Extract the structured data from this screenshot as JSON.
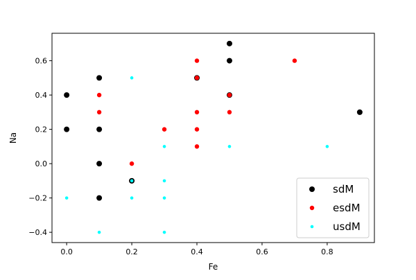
{
  "chart_data": {
    "type": "scatter",
    "title": "",
    "xlabel": "Fe",
    "ylabel": "Na",
    "xlim": [
      -0.045,
      0.945
    ],
    "ylim": [
      -0.46,
      0.76
    ],
    "xticks": [
      0.0,
      0.2,
      0.4,
      0.6,
      0.8
    ],
    "xtick_labels": [
      "0.0",
      "0.2",
      "0.4",
      "0.6",
      "0.8"
    ],
    "yticks": [
      -0.4,
      -0.2,
      0.0,
      0.2,
      0.4,
      0.6
    ],
    "ytick_labels": [
      "−0.4",
      "−0.2",
      "0.0",
      "0.2",
      "0.4",
      "0.6"
    ],
    "grid": false,
    "legend_position": "lower-right",
    "series": [
      {
        "name": "sdM",
        "color": "#000000",
        "marker": "large-dot",
        "points": [
          [
            0.0,
            0.4
          ],
          [
            0.0,
            0.2
          ],
          [
            0.1,
            0.5
          ],
          [
            0.1,
            0.2
          ],
          [
            0.1,
            0.0
          ],
          [
            0.1,
            -0.2
          ],
          [
            0.2,
            -0.1
          ],
          [
            0.4,
            0.5
          ],
          [
            0.5,
            0.7
          ],
          [
            0.5,
            0.6
          ],
          [
            0.5,
            0.4
          ],
          [
            0.9,
            0.3
          ]
        ]
      },
      {
        "name": "esdM",
        "color": "#ff0000",
        "marker": "medium-dot",
        "points": [
          [
            0.1,
            0.4
          ],
          [
            0.1,
            0.3
          ],
          [
            0.2,
            0.0
          ],
          [
            0.3,
            0.2
          ],
          [
            0.4,
            0.6
          ],
          [
            0.4,
            0.5
          ],
          [
            0.4,
            0.3
          ],
          [
            0.4,
            0.2
          ],
          [
            0.4,
            0.1
          ],
          [
            0.5,
            0.4
          ],
          [
            0.5,
            0.3
          ],
          [
            0.7,
            0.6
          ]
        ]
      },
      {
        "name": "usdM",
        "color": "#00ffff",
        "marker": "small-dot",
        "points": [
          [
            0.0,
            -0.2
          ],
          [
            0.1,
            -0.4
          ],
          [
            0.2,
            0.5
          ],
          [
            0.2,
            -0.1
          ],
          [
            0.2,
            -0.2
          ],
          [
            0.3,
            0.1
          ],
          [
            0.3,
            -0.1
          ],
          [
            0.3,
            -0.2
          ],
          [
            0.3,
            -0.4
          ],
          [
            0.5,
            0.1
          ],
          [
            0.8,
            0.1
          ]
        ]
      }
    ]
  }
}
